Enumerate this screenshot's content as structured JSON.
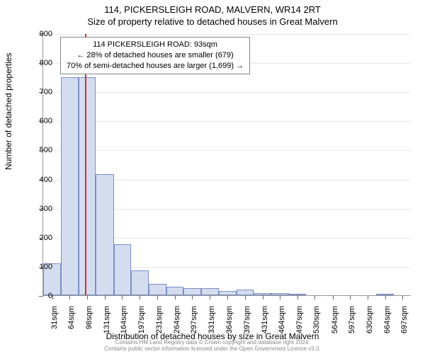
{
  "title_main": "114, PICKERSLEIGH ROAD, MALVERN, WR14 2RT",
  "title_sub": "Size of property relative to detached houses in Great Malvern",
  "y_axis_title": "Number of detached properties",
  "x_axis_title": "Distribution of detached houses by size in Great Malvern",
  "info_box": {
    "line1": "114 PICKERSLEIGH ROAD: 93sqm",
    "line2": "← 28% of detached houses are smaller (679)",
    "line3": "70% of semi-detached houses are larger (1,699) →"
  },
  "footer": {
    "line1": "Contains HM Land Registry data © Crown copyright and database right 2024.",
    "line2": "Contains public sector information licensed under the Open Government Licence v3.0."
  },
  "chart": {
    "type": "histogram",
    "ylim": [
      0,
      900
    ],
    "ytick_step": 100,
    "y_ticks": [
      0,
      100,
      200,
      300,
      400,
      500,
      600,
      700,
      800,
      900
    ],
    "x_labels": [
      "31sqm",
      "64sqm",
      "98sqm",
      "131sqm",
      "164sqm",
      "197sqm",
      "231sqm",
      "264sqm",
      "297sqm",
      "331sqm",
      "364sqm",
      "397sqm",
      "431sqm",
      "464sqm",
      "497sqm",
      "530sqm",
      "564sqm",
      "597sqm",
      "630sqm",
      "664sqm",
      "697sqm"
    ],
    "x_positions": [
      31,
      64,
      98,
      131,
      164,
      197,
      231,
      264,
      297,
      331,
      364,
      397,
      431,
      464,
      497,
      530,
      564,
      597,
      630,
      664,
      697
    ],
    "x_range": [
      14,
      714
    ],
    "marker_value": 93,
    "marker_color": "#cc3333",
    "bar_fill": "#d4ddf0",
    "bar_stroke": "#7a8fc4",
    "plot_bg": "#ffffff",
    "grid_color": "#e8e8e8",
    "bars": [
      {
        "start": 14,
        "end": 47,
        "count": 110
      },
      {
        "start": 47,
        "end": 81,
        "count": 750
      },
      {
        "start": 81,
        "end": 114,
        "count": 750
      },
      {
        "start": 114,
        "end": 148,
        "count": 415
      },
      {
        "start": 148,
        "end": 181,
        "count": 175
      },
      {
        "start": 181,
        "end": 214,
        "count": 84
      },
      {
        "start": 214,
        "end": 248,
        "count": 38
      },
      {
        "start": 248,
        "end": 281,
        "count": 30
      },
      {
        "start": 281,
        "end": 314,
        "count": 24
      },
      {
        "start": 314,
        "end": 348,
        "count": 24
      },
      {
        "start": 348,
        "end": 381,
        "count": 14
      },
      {
        "start": 381,
        "end": 414,
        "count": 20
      },
      {
        "start": 414,
        "end": 448,
        "count": 8
      },
      {
        "start": 448,
        "end": 481,
        "count": 8
      },
      {
        "start": 481,
        "end": 514,
        "count": 4
      },
      {
        "start": 514,
        "end": 547,
        "count": 0
      },
      {
        "start": 547,
        "end": 581,
        "count": 0
      },
      {
        "start": 581,
        "end": 614,
        "count": 0
      },
      {
        "start": 614,
        "end": 647,
        "count": 0
      },
      {
        "start": 647,
        "end": 681,
        "count": 4
      },
      {
        "start": 681,
        "end": 714,
        "count": 0
      }
    ]
  }
}
